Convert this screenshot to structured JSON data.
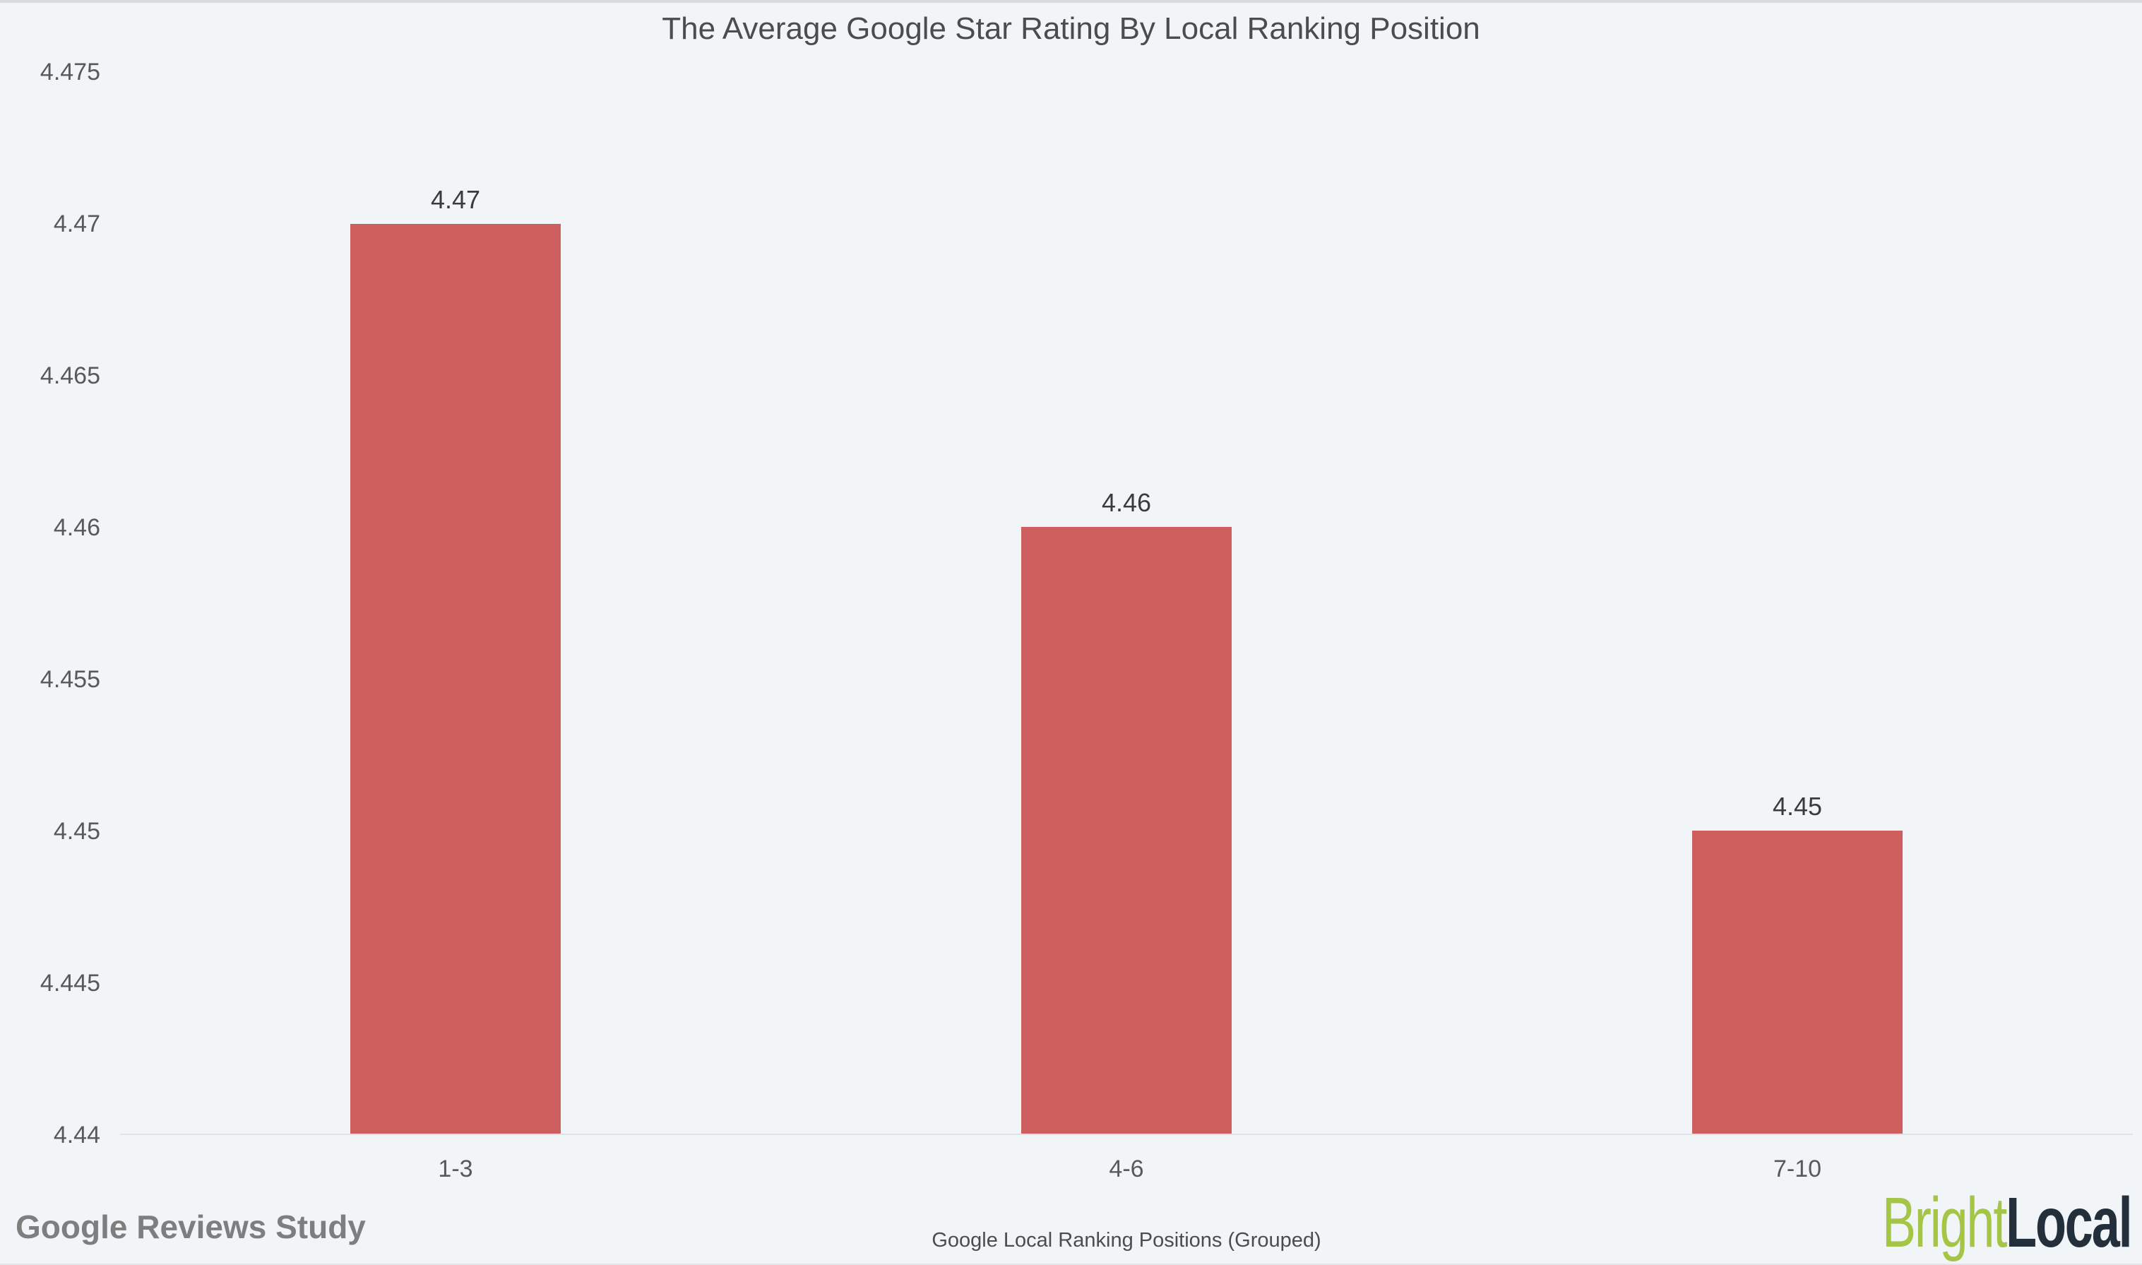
{
  "chart_data": {
    "type": "bar",
    "title": "The Average Google Star Rating By Local Ranking Position",
    "categories": [
      "1-3",
      "4-6",
      "7-10"
    ],
    "values": [
      4.47,
      4.46,
      4.45
    ],
    "value_labels": [
      "4.47",
      "4.46",
      "4.45"
    ],
    "xlabel": "Google Local Ranking Positions (Grouped)",
    "ylabel": "",
    "ylim": [
      4.44,
      4.475
    ],
    "yticks": [
      4.44,
      4.445,
      4.45,
      4.455,
      4.46,
      4.465,
      4.47,
      4.475
    ],
    "ytick_labels": [
      "4.44",
      "4.445",
      "4.45",
      "4.455",
      "4.46",
      "4.465",
      "4.47",
      "4.475"
    ],
    "grid": false,
    "legend_position": "none",
    "bar_color": "#cd5f5f"
  },
  "footer": {
    "watermark": "Google Reviews Study",
    "logo": {
      "part1": "Bright",
      "part2": "Local",
      "part1_color": "#a4c545",
      "part2_color": "#232f3b"
    }
  },
  "colors": {
    "background": "#f1f5f8",
    "axis_line": "#dee3e8",
    "title_text": "#4c4c4c",
    "tick_text": "#595959",
    "value_label_text": "#3b3b3b",
    "watermark_text": "#7e7e7e"
  }
}
